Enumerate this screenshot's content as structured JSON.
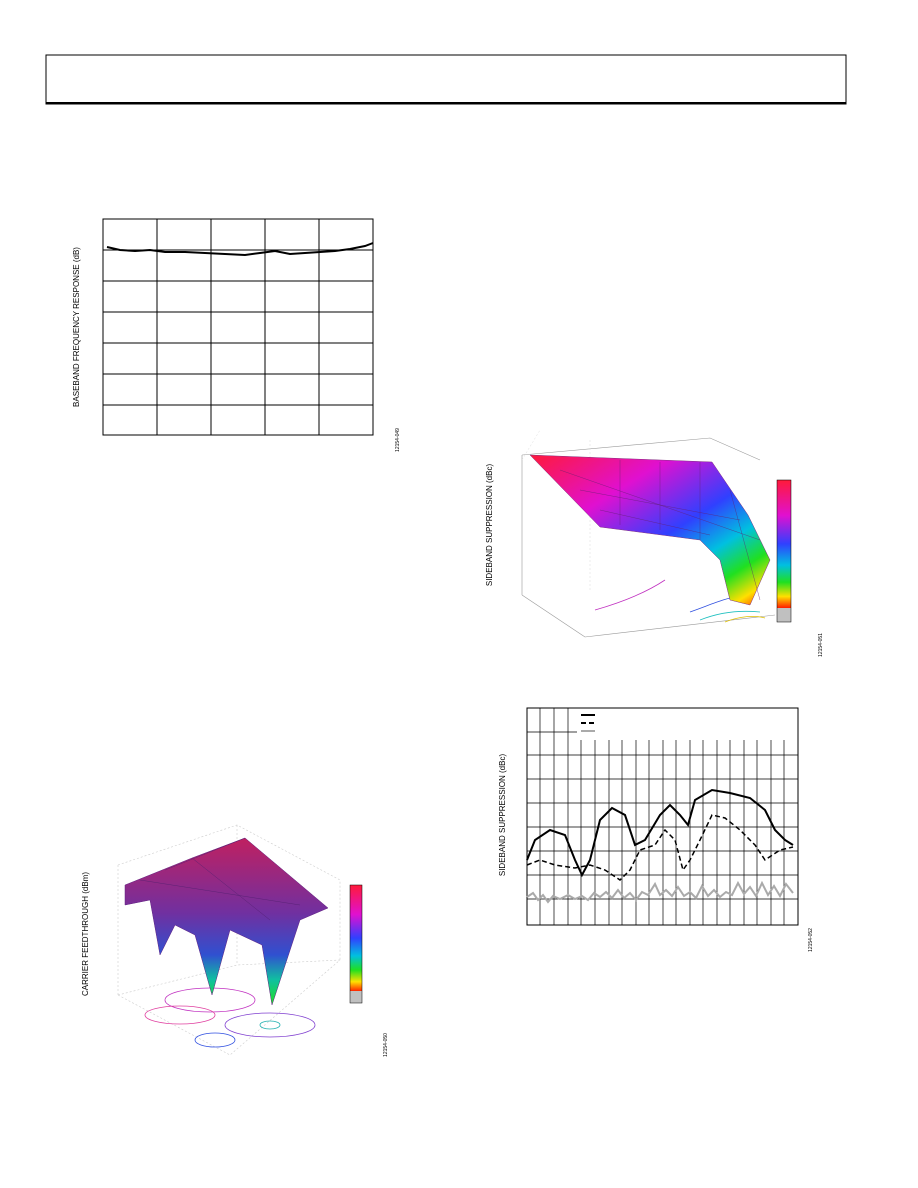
{
  "figures": [
    {
      "y_label": "BASEBAND FREQUENCY RESPONSE (dB)",
      "figure_id": "12154-049"
    },
    {
      "y_label": "CARRIER FEEDTHROUGH (dBm)",
      "figure_id": "12154-050"
    },
    {
      "y_label": "SIDEBAND SUPPRESSION (dBc)",
      "figure_id": "12154-051"
    },
    {
      "y_label": "SIDEBAND SUPPRESSION (dBc)",
      "figure_id": "12154-052"
    }
  ]
}
